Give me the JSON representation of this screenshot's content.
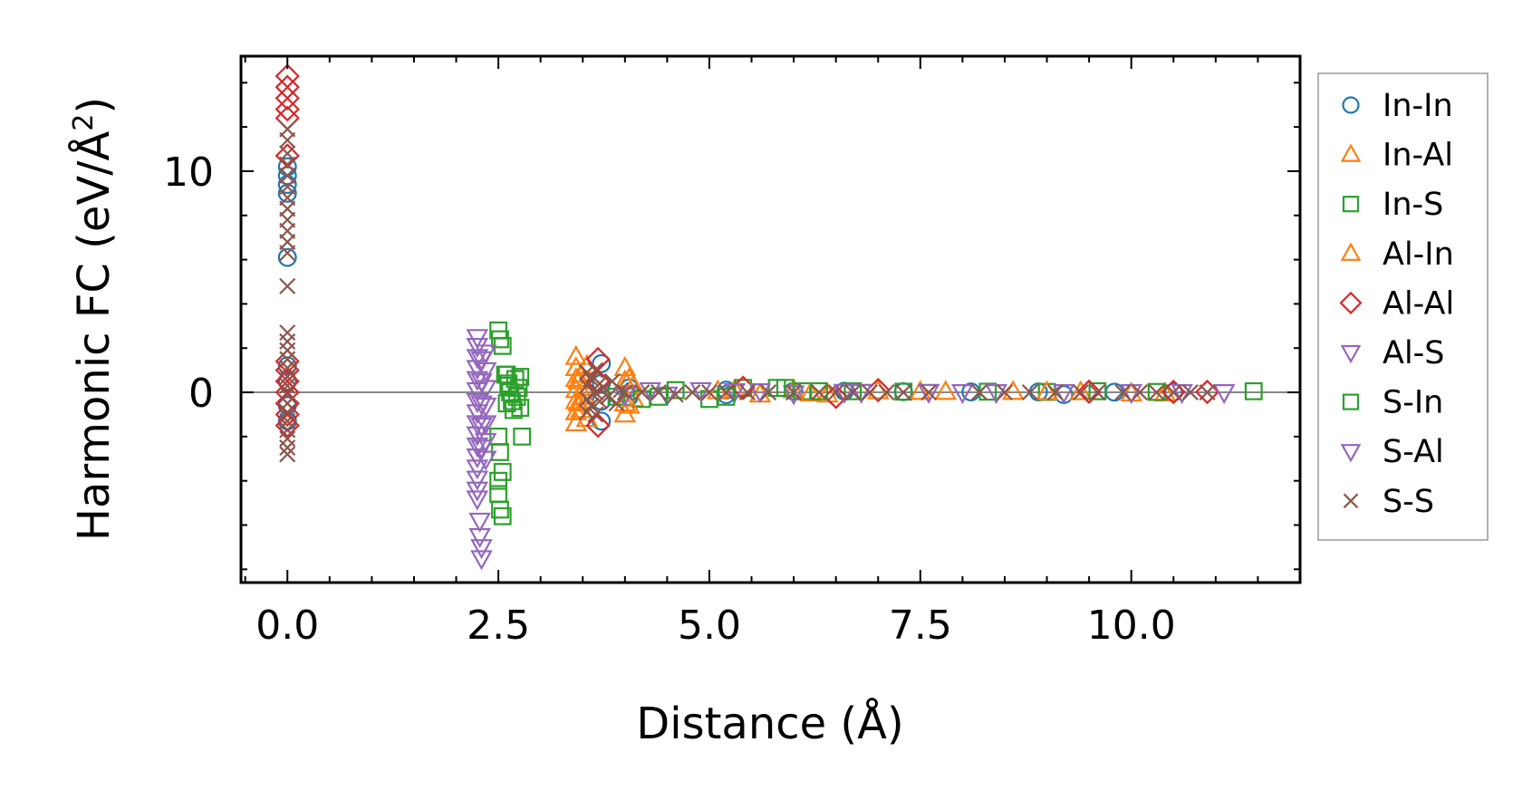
{
  "chart_data": {
    "type": "scatter",
    "title": "",
    "xlabel": "Distance (Å)",
    "ylabel_main": "Harmonic FC (eV/Å",
    "ylabel_sup": "2",
    "ylabel_close": ")",
    "xlim": [
      -0.55,
      12.0
    ],
    "ylim": [
      -8.6,
      15.2
    ],
    "x_ticks": [
      {
        "value": 0.0,
        "label": "0.0"
      },
      {
        "value": 2.5,
        "label": "2.5"
      },
      {
        "value": 5.0,
        "label": "5.0"
      },
      {
        "value": 7.5,
        "label": "7.5"
      },
      {
        "value": 10.0,
        "label": "10.0"
      }
    ],
    "x_minor_step": 0.5,
    "y_ticks": [
      {
        "value": 0,
        "label": "0"
      },
      {
        "value": 10,
        "label": "10"
      }
    ],
    "y_minor_step": 2,
    "reference_line_y": 0,
    "legend_position": "outside-right",
    "series": [
      {
        "name": "In-In",
        "label": "In-In",
        "marker": "circle",
        "color": "#1f77b4",
        "points": [
          [
            0,
            10.2
          ],
          [
            0,
            9.8
          ],
          [
            0,
            9.4
          ],
          [
            0,
            9.0
          ],
          [
            0,
            6.1
          ],
          [
            0,
            1.2
          ],
          [
            0,
            0.5
          ],
          [
            0,
            -0.6
          ],
          [
            0,
            -1.3
          ],
          [
            3.72,
            1.3
          ],
          [
            3.72,
            -1.3
          ],
          [
            3.72,
            0.4
          ],
          [
            3.72,
            -0.4
          ],
          [
            4.05,
            0.2
          ],
          [
            4.05,
            -0.2
          ],
          [
            5.2,
            0.1
          ],
          [
            5.2,
            -0.1
          ],
          [
            6.0,
            0.05
          ],
          [
            6.6,
            0.05
          ],
          [
            7.3,
            0.03
          ],
          [
            8.1,
            0.02
          ],
          [
            8.9,
            0.02
          ],
          [
            9.2,
            -0.1
          ],
          [
            9.8,
            0.01
          ],
          [
            10.5,
            0.01
          ]
        ]
      },
      {
        "name": "In-Al",
        "label": "In-Al",
        "marker": "triangle-up",
        "color": "#ff7f0e",
        "points": [
          [
            3.42,
            1.6
          ],
          [
            3.42,
            1.1
          ],
          [
            3.42,
            0.6
          ],
          [
            3.42,
            0.1
          ],
          [
            3.42,
            -0.4
          ],
          [
            3.42,
            -0.9
          ],
          [
            3.42,
            -1.4
          ],
          [
            3.48,
            0.8
          ],
          [
            3.48,
            -0.8
          ],
          [
            3.55,
            1.2
          ],
          [
            3.55,
            -1.2
          ],
          [
            4.0,
            1.1
          ],
          [
            4.0,
            0.5
          ],
          [
            4.0,
            -0.5
          ],
          [
            4.0,
            -1.0
          ],
          [
            4.1,
            0.3
          ],
          [
            4.1,
            -0.3
          ],
          [
            5.3,
            0.1
          ],
          [
            5.6,
            -0.1
          ],
          [
            6.0,
            0.1
          ],
          [
            6.4,
            -0.1
          ],
          [
            7.0,
            0.05
          ],
          [
            7.8,
            0.02
          ],
          [
            8.6,
            0.02
          ],
          [
            9.4,
            0.01
          ],
          [
            10.0,
            -0.05
          ],
          [
            10.4,
            -0.05
          ]
        ]
      },
      {
        "name": "In-S",
        "label": "In-S",
        "marker": "square",
        "color": "#2ca02c",
        "points": [
          [
            2.5,
            2.8
          ],
          [
            2.52,
            2.4
          ],
          [
            2.55,
            2.1
          ],
          [
            2.5,
            -2.0
          ],
          [
            2.52,
            -2.7
          ],
          [
            2.55,
            -3.6
          ],
          [
            2.5,
            -4.6
          ],
          [
            2.52,
            -5.3
          ],
          [
            2.55,
            -5.6
          ],
          [
            2.5,
            -4.0
          ],
          [
            2.6,
            0.8
          ],
          [
            2.62,
            0.4
          ],
          [
            2.64,
            0
          ],
          [
            2.66,
            -0.4
          ],
          [
            2.68,
            -0.8
          ],
          [
            2.7,
            0.6
          ],
          [
            2.72,
            -0.2
          ],
          [
            2.74,
            0.2
          ],
          [
            2.78,
            -2.0
          ],
          [
            3.9,
            -0.2
          ],
          [
            4.2,
            -0.3
          ],
          [
            4.6,
            0.1
          ],
          [
            5.0,
            -0.3
          ],
          [
            5.4,
            0.2
          ],
          [
            5.9,
            0.2
          ],
          [
            6.1,
            0.05
          ],
          [
            6.7,
            0.05
          ],
          [
            7.3,
            0.03
          ],
          [
            8.3,
            0.03
          ],
          [
            9.0,
            0.02
          ],
          [
            9.6,
            0.05
          ],
          [
            10.3,
            0.02
          ],
          [
            11.45,
            0.05
          ]
        ]
      },
      {
        "name": "Al-In",
        "label": "Al-In",
        "marker": "triangle-up",
        "color": "#ff7f0e",
        "points": [
          [
            3.45,
            0.5
          ],
          [
            3.45,
            -0.5
          ],
          [
            3.52,
            0.2
          ],
          [
            3.52,
            -0.2
          ],
          [
            4.05,
            0.6
          ],
          [
            4.05,
            -0.6
          ],
          [
            5.1,
            0.05
          ],
          [
            6.2,
            -0.05
          ],
          [
            7.5,
            0.02
          ],
          [
            9.0,
            0.01
          ]
        ]
      },
      {
        "name": "Al-Al",
        "label": "Al-Al",
        "marker": "diamond",
        "color": "#d62728",
        "points": [
          [
            0,
            14.3
          ],
          [
            0,
            13.8
          ],
          [
            0,
            13.3
          ],
          [
            0,
            12.8
          ],
          [
            0,
            12.4
          ],
          [
            0,
            10.7
          ],
          [
            0,
            1.4
          ],
          [
            0,
            1.0
          ],
          [
            0,
            0.5
          ],
          [
            0,
            0
          ],
          [
            0,
            -0.5
          ],
          [
            0,
            -1.0
          ],
          [
            0,
            -1.5
          ],
          [
            3.68,
            1.5
          ],
          [
            3.68,
            -1.5
          ],
          [
            3.68,
            0.5
          ],
          [
            5.4,
            0.2
          ],
          [
            6.5,
            -0.2
          ],
          [
            7.0,
            0.1
          ],
          [
            9.5,
            0.03
          ],
          [
            10.5,
            0.02
          ],
          [
            10.9,
            0.02
          ]
        ]
      },
      {
        "name": "Al-S",
        "label": "Al-S",
        "marker": "triangle-down",
        "color": "#9467bd",
        "points": [
          [
            2.25,
            2.5
          ],
          [
            2.25,
            2.1
          ],
          [
            2.25,
            1.6
          ],
          [
            2.25,
            1.1
          ],
          [
            2.25,
            0.6
          ],
          [
            2.25,
            0.1
          ],
          [
            2.25,
            -0.4
          ],
          [
            2.25,
            -0.9
          ],
          [
            2.25,
            -1.4
          ],
          [
            2.25,
            -1.9
          ],
          [
            2.25,
            -2.4
          ],
          [
            2.25,
            -2.9
          ],
          [
            2.25,
            -3.4
          ],
          [
            2.25,
            -3.9
          ],
          [
            2.25,
            -4.4
          ],
          [
            2.25,
            -4.8
          ],
          [
            2.28,
            -5.8
          ],
          [
            2.28,
            -6.5
          ],
          [
            2.3,
            -7.0
          ],
          [
            2.3,
            -7.5
          ],
          [
            2.35,
            1.8
          ],
          [
            2.35,
            1.0
          ],
          [
            2.35,
            0.2
          ],
          [
            2.35,
            -0.6
          ],
          [
            2.35,
            -1.4
          ],
          [
            2.35,
            -2.2
          ],
          [
            2.35,
            -3.0
          ],
          [
            4.0,
            -0.1
          ],
          [
            4.5,
            -0.1
          ],
          [
            4.9,
            0.1
          ],
          [
            5.3,
            0.05
          ],
          [
            6.0,
            -0.05
          ],
          [
            6.8,
            0.02
          ],
          [
            7.6,
            0.02
          ],
          [
            8.4,
            0.01
          ],
          [
            9.2,
            0.01
          ],
          [
            10.0,
            0.01
          ],
          [
            10.6,
            0.01
          ],
          [
            11.1,
            0.01
          ]
        ]
      },
      {
        "name": "S-In",
        "label": "S-In",
        "marker": "square",
        "color": "#2ca02c",
        "points": [
          [
            2.58,
            0.8
          ],
          [
            2.6,
            -0.5
          ],
          [
            2.62,
            0.3
          ],
          [
            2.76,
            0.7
          ],
          [
            2.76,
            -0.7
          ],
          [
            4.4,
            -0.2
          ],
          [
            5.2,
            -0.2
          ],
          [
            5.8,
            0.2
          ],
          [
            6.3,
            0.05
          ]
        ]
      },
      {
        "name": "S-Al",
        "label": "S-Al",
        "marker": "triangle-down",
        "color": "#9467bd",
        "points": [
          [
            2.3,
            1.5
          ],
          [
            2.3,
            0.5
          ],
          [
            2.3,
            -0.5
          ],
          [
            2.3,
            -1.5
          ],
          [
            2.3,
            -2.5
          ],
          [
            4.3,
            0.1
          ],
          [
            5.6,
            0.05
          ],
          [
            6.6,
            0.02
          ],
          [
            8.0,
            0.01
          ]
        ]
      },
      {
        "name": "S-S",
        "label": "S-S",
        "marker": "x",
        "color": "#8c564b",
        "points": [
          [
            0,
            11.9
          ],
          [
            0,
            11.4
          ],
          [
            0,
            10.8
          ],
          [
            0,
            10.3
          ],
          [
            0,
            9.8
          ],
          [
            0,
            9.3
          ],
          [
            0,
            8.8
          ],
          [
            0,
            8.3
          ],
          [
            0,
            7.8
          ],
          [
            0,
            7.3
          ],
          [
            0,
            6.8
          ],
          [
            0,
            6.3
          ],
          [
            0,
            4.8
          ],
          [
            0,
            2.7
          ],
          [
            0,
            2.3
          ],
          [
            0,
            1.9
          ],
          [
            0,
            1.5
          ],
          [
            0,
            1.1
          ],
          [
            0,
            0.7
          ],
          [
            0,
            0.3
          ],
          [
            0,
            -0.1
          ],
          [
            0,
            -0.5
          ],
          [
            0,
            -0.9
          ],
          [
            0,
            -1.3
          ],
          [
            0,
            -1.7
          ],
          [
            0,
            -2.1
          ],
          [
            0,
            -2.5
          ],
          [
            0,
            -2.8
          ],
          [
            3.55,
            0.9
          ],
          [
            3.55,
            0.3
          ],
          [
            3.55,
            -0.3
          ],
          [
            3.55,
            -0.9
          ],
          [
            3.6,
            0.6
          ],
          [
            3.6,
            -0.6
          ],
          [
            3.65,
            1.0
          ],
          [
            3.65,
            0
          ],
          [
            3.65,
            -1.0
          ],
          [
            3.7,
            0.4
          ],
          [
            3.7,
            -0.4
          ],
          [
            3.75,
            0.2
          ],
          [
            3.8,
            -0.2
          ],
          [
            3.85,
            0.5
          ],
          [
            3.9,
            -0.5
          ],
          [
            3.95,
            0.1
          ],
          [
            4.0,
            0
          ],
          [
            4.2,
            0
          ],
          [
            4.4,
            0
          ],
          [
            4.6,
            -0.1
          ],
          [
            4.8,
            0
          ],
          [
            5.0,
            0
          ],
          [
            5.2,
            0
          ],
          [
            5.45,
            0
          ],
          [
            5.7,
            0
          ],
          [
            6.0,
            0
          ],
          [
            6.3,
            0
          ],
          [
            6.5,
            0
          ],
          [
            6.7,
            0
          ],
          [
            6.9,
            0
          ],
          [
            7.1,
            0
          ],
          [
            7.3,
            0
          ],
          [
            7.6,
            0
          ],
          [
            8.2,
            0
          ],
          [
            8.5,
            0
          ],
          [
            8.8,
            0
          ],
          [
            9.1,
            0
          ],
          [
            9.4,
            0
          ],
          [
            9.6,
            0
          ],
          [
            9.9,
            0
          ],
          [
            10.1,
            0
          ],
          [
            10.3,
            0
          ],
          [
            10.5,
            0
          ],
          [
            10.7,
            0
          ],
          [
            10.9,
            0
          ]
        ]
      }
    ]
  }
}
